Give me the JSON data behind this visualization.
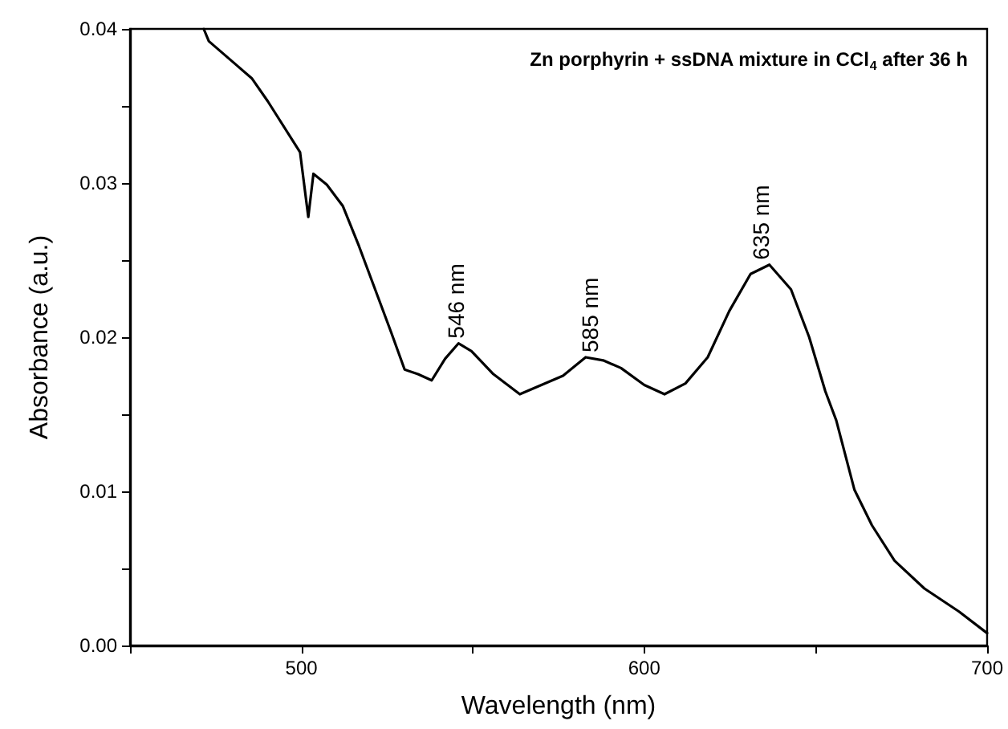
{
  "chart_data": {
    "type": "line",
    "title": "Zn porphyrin + ssDNA mixture in CCl$_{4}$ after 36 h",
    "xlabel": "Wavelength (nm)",
    "ylabel": "Absorbance (a.u.)",
    "x": [
      471.5,
      473,
      480.8,
      485.5,
      490.2,
      499.6,
      502,
      503.5,
      507.4,
      512.1,
      516.8,
      521.5,
      526.2,
      530.1,
      534,
      538,
      541.9,
      545.8,
      549.6,
      556,
      563.7,
      576.3,
      582.9,
      588,
      593.2,
      600,
      605.9,
      612,
      618.5,
      624.8,
      631,
      636.5,
      642.8,
      648.1,
      652.8,
      656,
      661.3,
      666.4,
      673,
      681.7,
      691.8,
      700
    ],
    "series": [
      {
        "color": "#000000",
        "values": [
          0.04,
          0.0392,
          0.0377,
          0.0368,
          0.0353,
          0.032,
          0.0278,
          0.0306,
          0.0299,
          0.0285,
          0.0259,
          0.0231,
          0.0203,
          0.0179,
          0.0176,
          0.0172,
          0.0186,
          0.0196,
          0.0191,
          0.0176,
          0.0163,
          0.0175,
          0.0187,
          0.0185,
          0.018,
          0.0169,
          0.0163,
          0.017,
          0.0187,
          0.0217,
          0.0241,
          0.0247,
          0.0231,
          0.02,
          0.0165,
          0.0146,
          0.0101,
          0.0078,
          0.0055,
          0.0037,
          0.0022,
          0.0008
        ]
      }
    ],
    "annotations": [
      {
        "text": "546 nm",
        "x": 546,
        "y": 0.0196
      },
      {
        "text": "585 nm",
        "x": 585,
        "y": 0.0187
      },
      {
        "text": "635 nm",
        "x": 635,
        "y": 0.0247
      }
    ],
    "xlim": [
      450,
      700
    ],
    "ylim": [
      0,
      0.04
    ],
    "xticks": [
      {
        "value": 450,
        "label": null
      },
      500,
      {
        "value": 550,
        "label": null
      },
      600,
      {
        "value": 650,
        "label": null
      },
      700
    ],
    "yticks": [
      {
        "value": 0,
        "label": "0.00"
      },
      {
        "value": 0.005,
        "label": null
      },
      {
        "value": 0.01,
        "label": "0.01"
      },
      {
        "value": 0.015,
        "label": null
      },
      {
        "value": 0.02,
        "label": "0.02"
      },
      {
        "value": 0.025,
        "label": null
      },
      {
        "value": 0.03,
        "label": "0.03"
      },
      {
        "value": 0.035,
        "label": null
      },
      {
        "value": 0.04,
        "label": "0.04"
      }
    ],
    "marker": "none",
    "line_style": "solid"
  }
}
